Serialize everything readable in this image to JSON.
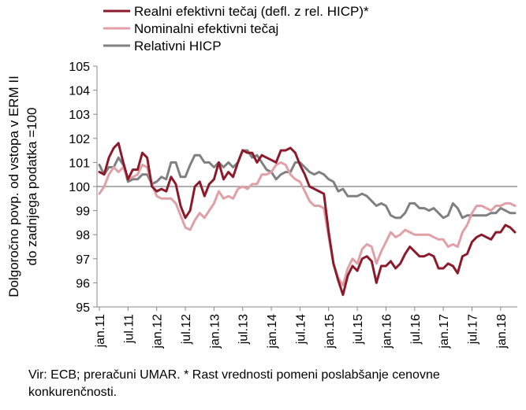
{
  "chart_data": {
    "type": "line",
    "title": "",
    "ylabel_line1": "Dolgoročno povp. od vstopa v ERM II",
    "ylabel_line2": "do zadnjega podatka =100",
    "xlabel": "",
    "ylim": [
      95,
      105
    ],
    "yticks": [
      95,
      96,
      97,
      98,
      99,
      100,
      101,
      102,
      103,
      104,
      105
    ],
    "reference_line": 100,
    "x_start": "2011-01",
    "x_end": "2018-07",
    "xtick_labels": [
      "jan.11",
      "jul.11",
      "jan.12",
      "jul.12",
      "jan.13",
      "jul.13",
      "jan.14",
      "jul.14",
      "jan.15",
      "jul.15",
      "jan.16",
      "jul.16",
      "jan.17",
      "jul.17",
      "jan.18"
    ],
    "legend_position": "top-left",
    "series": [
      {
        "name": "Realni efektivni tečaj (defl. z rel. HICP)*",
        "color": "#8B1A2B",
        "values": [
          100.6,
          100.5,
          101.2,
          101.6,
          101.8,
          101.0,
          100.3,
          100.7,
          100.7,
          101.4,
          101.2,
          100.0,
          99.8,
          99.9,
          99.8,
          100.4,
          100.1,
          99.2,
          98.7,
          99.0,
          100.0,
          100.2,
          99.6,
          100.1,
          100.3,
          101.0,
          100.3,
          100.6,
          100.4,
          101.0,
          101.5,
          101.4,
          101.4,
          101.0,
          101.3,
          101.2,
          101.1,
          101.0,
          101.5,
          101.5,
          101.6,
          101.4,
          100.9,
          100.5,
          100.0,
          99.9,
          99.8,
          99.7,
          98.1,
          96.8,
          96.1,
          95.5,
          96.3,
          96.7,
          96.5,
          97.0,
          97.1,
          96.9,
          96.0,
          96.7,
          96.7,
          96.9,
          96.6,
          96.8,
          97.2,
          97.5,
          97.3,
          97.1,
          97.1,
          97.2,
          97.1,
          96.6,
          96.6,
          96.8,
          96.7,
          96.4,
          97.1,
          97.2,
          97.7,
          97.9,
          98.0,
          97.9,
          97.8,
          98.1,
          98.1,
          98.4,
          98.3,
          98.1
        ]
      },
      {
        "name": "Nominalni efektivni tečaj",
        "color": "#E0A0A6",
        "values": [
          99.7,
          100.0,
          100.5,
          100.8,
          100.6,
          100.8,
          100.3,
          100.4,
          100.5,
          100.9,
          100.8,
          100.1,
          99.6,
          99.5,
          99.5,
          99.5,
          99.3,
          98.8,
          98.3,
          98.2,
          98.6,
          98.9,
          98.7,
          99.0,
          99.3,
          99.8,
          99.5,
          99.6,
          99.5,
          99.9,
          100.0,
          99.9,
          100.1,
          100.1,
          100.5,
          100.5,
          100.6,
          100.9,
          101.0,
          100.9,
          100.5,
          100.3,
          100.2,
          99.8,
          99.4,
          99.2,
          99.2,
          99.1,
          97.9,
          96.8,
          96.2,
          95.9,
          96.6,
          97.0,
          96.8,
          97.4,
          97.6,
          97.5,
          96.8,
          97.3,
          97.7,
          98.1,
          97.9,
          98.0,
          98.2,
          98.1,
          98.0,
          98.0,
          98.0,
          98.0,
          97.9,
          97.8,
          97.8,
          97.5,
          97.6,
          97.5,
          98.1,
          98.4,
          98.9,
          99.2,
          99.2,
          99.1,
          99.0,
          99.2,
          99.2,
          99.3,
          99.3,
          99.2
        ]
      },
      {
        "name": "Relativni HICP",
        "color": "#808080",
        "values": [
          100.9,
          100.5,
          100.8,
          100.8,
          101.2,
          100.9,
          100.2,
          100.3,
          100.3,
          100.5,
          100.5,
          100.1,
          100.2,
          100.4,
          100.3,
          101.0,
          101.0,
          100.4,
          100.4,
          100.9,
          101.3,
          101.3,
          101.0,
          101.0,
          100.8,
          101.0,
          100.8,
          101.0,
          100.8,
          101.0,
          101.5,
          101.5,
          101.2,
          101.3,
          101.0,
          100.7,
          100.6,
          100.3,
          100.5,
          100.6,
          100.6,
          101.0,
          101.0,
          100.8,
          100.6,
          100.5,
          100.6,
          100.5,
          100.3,
          100.2,
          99.8,
          99.9,
          99.6,
          99.6,
          99.6,
          99.7,
          99.6,
          99.4,
          99.2,
          99.3,
          99.2,
          98.8,
          98.7,
          98.7,
          98.9,
          99.3,
          99.3,
          99.1,
          99.1,
          99.0,
          99.1,
          98.9,
          98.7,
          98.8,
          99.3,
          99.1,
          98.7,
          98.8,
          98.8,
          98.8,
          98.8,
          98.8,
          98.9,
          98.9,
          99.1,
          99.0,
          98.9,
          98.9
        ]
      }
    ]
  },
  "source_text": "Vir: ECB; preračuni UMAR. * Rast vrednosti pomeni poslabšanje cenovne konkurenčnosti."
}
